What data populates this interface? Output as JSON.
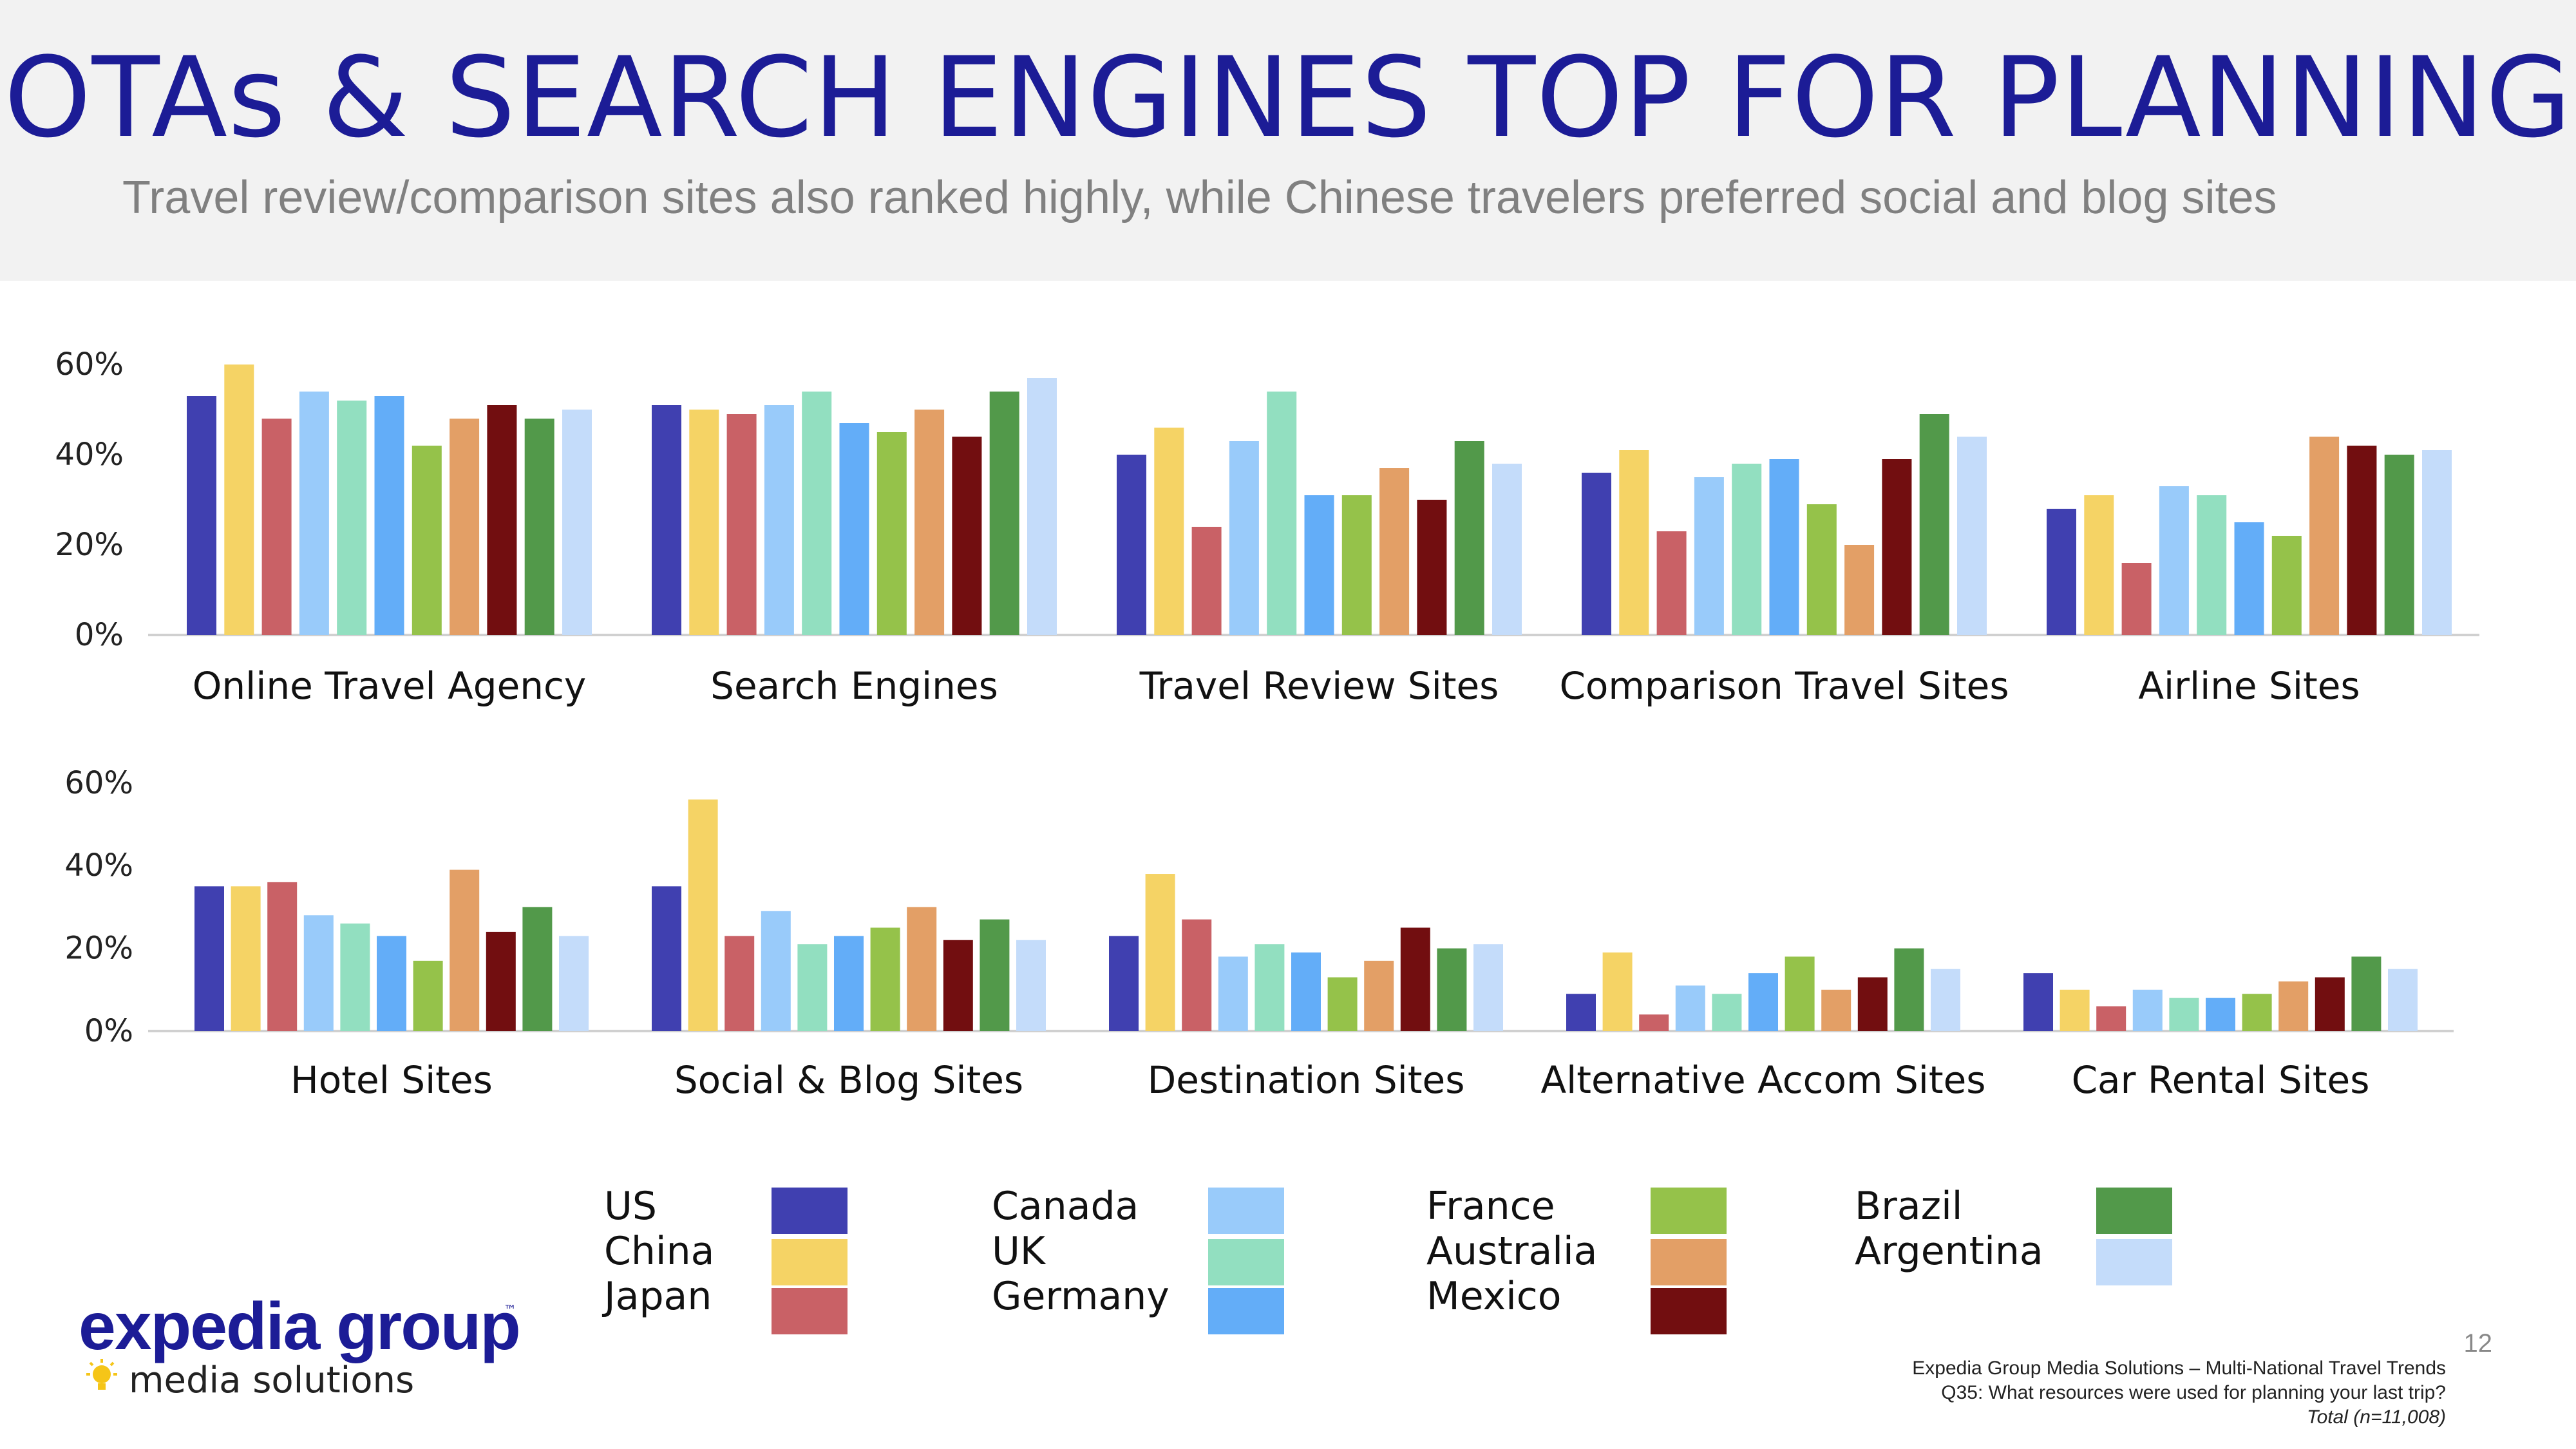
{
  "header": {
    "title": "OTAs & SEARCH ENGINES TOP FOR PLANNING",
    "subtitle": "Travel review/comparison sites also ranked highly, while Chinese travelers preferred social and blog sites"
  },
  "chart_data": [
    {
      "type": "bar",
      "categories": [
        "Online Travel Agency",
        "Search Engines",
        "Travel Review Sites",
        "Comparison Travel Sites",
        "Airline Sites"
      ],
      "y_ticks": [
        "60%",
        "40%",
        "20%",
        "0%"
      ],
      "ylim": [
        0,
        60
      ],
      "series": [
        {
          "name": "US",
          "values": [
            53,
            51,
            40,
            36,
            28
          ]
        },
        {
          "name": "China",
          "values": [
            60,
            50,
            46,
            41,
            31
          ]
        },
        {
          "name": "Japan",
          "values": [
            48,
            49,
            24,
            23,
            16
          ]
        },
        {
          "name": "Canada",
          "values": [
            54,
            51,
            43,
            35,
            33
          ]
        },
        {
          "name": "UK",
          "values": [
            52,
            54,
            54,
            38,
            31
          ]
        },
        {
          "name": "Germany",
          "values": [
            53,
            47,
            31,
            39,
            25
          ]
        },
        {
          "name": "France",
          "values": [
            42,
            45,
            31,
            29,
            22
          ]
        },
        {
          "name": "Australia",
          "values": [
            48,
            50,
            37,
            20,
            44
          ]
        },
        {
          "name": "Mexico",
          "values": [
            51,
            44,
            30,
            39,
            42
          ]
        },
        {
          "name": "Brazil",
          "values": [
            48,
            54,
            43,
            49,
            40
          ]
        },
        {
          "name": "Argentina",
          "values": [
            50,
            57,
            38,
            44,
            41
          ]
        }
      ]
    },
    {
      "type": "bar",
      "categories": [
        "Hotel Sites",
        "Social & Blog Sites",
        "Destination Sites",
        "Alternative Accom Sites",
        "Car Rental Sites"
      ],
      "y_ticks": [
        "60%",
        "40%",
        "20%",
        "0%"
      ],
      "ylim": [
        0,
        60
      ],
      "series": [
        {
          "name": "US",
          "values": [
            35,
            35,
            23,
            9,
            14
          ]
        },
        {
          "name": "China",
          "values": [
            35,
            56,
            38,
            19,
            10
          ]
        },
        {
          "name": "Japan",
          "values": [
            36,
            23,
            27,
            4,
            6
          ]
        },
        {
          "name": "Canada",
          "values": [
            28,
            29,
            18,
            11,
            10
          ]
        },
        {
          "name": "UK",
          "values": [
            26,
            21,
            21,
            9,
            8
          ]
        },
        {
          "name": "Germany",
          "values": [
            23,
            23,
            19,
            14,
            8
          ]
        },
        {
          "name": "France",
          "values": [
            17,
            25,
            13,
            18,
            9
          ]
        },
        {
          "name": "Australia",
          "values": [
            39,
            30,
            17,
            10,
            12
          ]
        },
        {
          "name": "Mexico",
          "values": [
            24,
            22,
            25,
            13,
            13
          ]
        },
        {
          "name": "Brazil",
          "values": [
            30,
            27,
            20,
            20,
            18
          ]
        },
        {
          "name": "Argentina",
          "values": [
            23,
            22,
            21,
            15,
            15
          ]
        }
      ]
    }
  ],
  "colors": {
    "US": "#4040b0",
    "China": "#f5d365",
    "Japan": "#c96166",
    "Canada": "#99cbfa",
    "UK": "#92dfc0",
    "Germany": "#63adf8",
    "France": "#95c24a",
    "Australia": "#e39f66",
    "Mexico": "#720e10",
    "Brazil": "#52994a",
    "Argentina": "#c4dcfa"
  },
  "legend": [
    [
      "US",
      "China",
      "Japan"
    ],
    [
      "Canada",
      "UK",
      "Germany"
    ],
    [
      "France",
      "Australia",
      "Mexico"
    ],
    [
      "Brazil",
      "Argentina"
    ]
  ],
  "branding": {
    "logo_text": "expedia group",
    "logo_tm": "™",
    "logo_subtext": "media solutions"
  },
  "page_number": "12",
  "footer": {
    "source": "Expedia Group Media Solutions – Multi-National Travel Trends",
    "question": "Q35: What resources were used for planning your last trip?",
    "base": "Total (n=11,008)"
  }
}
